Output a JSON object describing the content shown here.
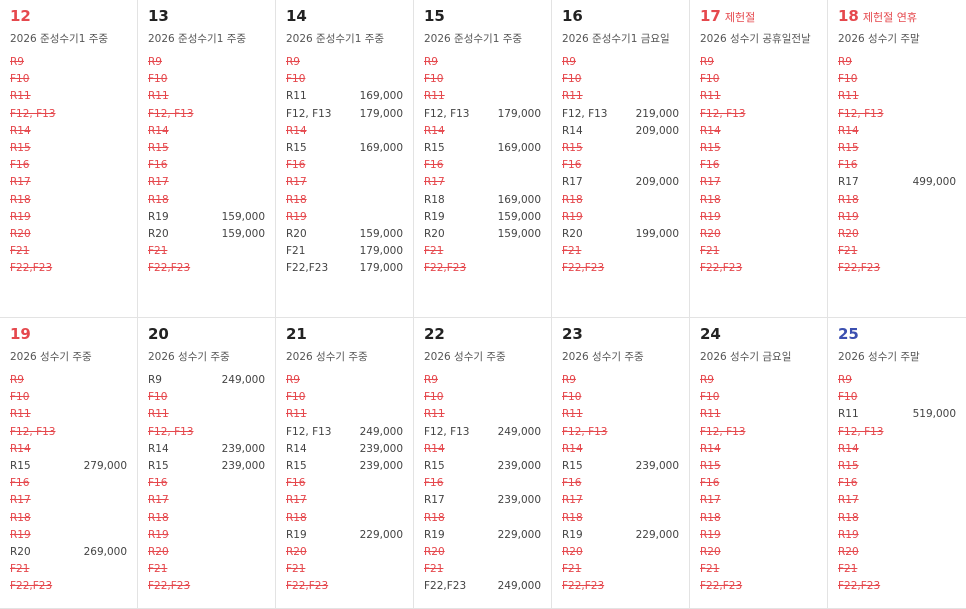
{
  "cells": [
    {
      "day": "12",
      "color": "#e5484d",
      "label": "2026 준성수기1 주중",
      "rooms": [
        {
          "name": "R9"
        },
        {
          "name": "F10"
        },
        {
          "name": "R11"
        },
        {
          "name": "F12, F13"
        },
        {
          "name": "R14"
        },
        {
          "name": "R15"
        },
        {
          "name": "F16"
        },
        {
          "name": "R17"
        },
        {
          "name": "R18"
        },
        {
          "name": "R19"
        },
        {
          "name": "R20"
        },
        {
          "name": "F21"
        },
        {
          "name": "F22,F23"
        }
      ]
    },
    {
      "day": "13",
      "label": "2026 준성수기1 주중",
      "rooms": [
        {
          "name": "R9"
        },
        {
          "name": "F10"
        },
        {
          "name": "R11"
        },
        {
          "name": "F12, F13"
        },
        {
          "name": "R14"
        },
        {
          "name": "R15"
        },
        {
          "name": "F16"
        },
        {
          "name": "R17"
        },
        {
          "name": "R18"
        },
        {
          "name": "R19",
          "price": "159,000"
        },
        {
          "name": "R20",
          "price": "159,000"
        },
        {
          "name": "F21"
        },
        {
          "name": "F22,F23"
        }
      ]
    },
    {
      "day": "14",
      "label": "2026 준성수기1 주중",
      "rooms": [
        {
          "name": "R9"
        },
        {
          "name": "F10"
        },
        {
          "name": "R11",
          "price": "169,000"
        },
        {
          "name": "F12, F13",
          "price": "179,000"
        },
        {
          "name": "R14"
        },
        {
          "name": "R15",
          "price": "169,000"
        },
        {
          "name": "F16"
        },
        {
          "name": "R17"
        },
        {
          "name": "R18"
        },
        {
          "name": "R19"
        },
        {
          "name": "R20",
          "price": "159,000"
        },
        {
          "name": "F21",
          "price": "179,000"
        },
        {
          "name": "F22,F23",
          "price": "179,000"
        }
      ]
    },
    {
      "day": "15",
      "label": "2026 준성수기1 주중",
      "rooms": [
        {
          "name": "R9"
        },
        {
          "name": "F10"
        },
        {
          "name": "R11"
        },
        {
          "name": "F12, F13",
          "price": "179,000"
        },
        {
          "name": "R14"
        },
        {
          "name": "R15",
          "price": "169,000"
        },
        {
          "name": "F16"
        },
        {
          "name": "R17"
        },
        {
          "name": "R18",
          "price": "169,000"
        },
        {
          "name": "R19",
          "price": "159,000"
        },
        {
          "name": "R20",
          "price": "159,000"
        },
        {
          "name": "F21"
        },
        {
          "name": "F22,F23"
        }
      ]
    },
    {
      "day": "16",
      "label": "2026 준성수기1 금요일",
      "rooms": [
        {
          "name": "R9"
        },
        {
          "name": "F10"
        },
        {
          "name": "R11"
        },
        {
          "name": "F12, F13",
          "price": "219,000"
        },
        {
          "name": "R14",
          "price": "209,000"
        },
        {
          "name": "R15"
        },
        {
          "name": "F16"
        },
        {
          "name": "R17",
          "price": "209,000"
        },
        {
          "name": "R18"
        },
        {
          "name": "R19"
        },
        {
          "name": "R20",
          "price": "199,000"
        },
        {
          "name": "F21"
        },
        {
          "name": "F22,F23"
        }
      ]
    },
    {
      "day": "17",
      "color": "#e5484d",
      "holiday": "제헌절",
      "label": "2026 성수기 공휴일전날",
      "rooms": [
        {
          "name": "R9"
        },
        {
          "name": "F10"
        },
        {
          "name": "R11"
        },
        {
          "name": "F12, F13"
        },
        {
          "name": "R14"
        },
        {
          "name": "R15"
        },
        {
          "name": "F16"
        },
        {
          "name": "R17"
        },
        {
          "name": "R18"
        },
        {
          "name": "R19"
        },
        {
          "name": "R20"
        },
        {
          "name": "F21"
        },
        {
          "name": "F22,F23"
        }
      ]
    },
    {
      "day": "18",
      "color": "#e5484d",
      "holiday": "제헌절 연휴",
      "label": "2026 성수기 주말",
      "rooms": [
        {
          "name": "R9"
        },
        {
          "name": "F10"
        },
        {
          "name": "R11"
        },
        {
          "name": "F12, F13"
        },
        {
          "name": "R14"
        },
        {
          "name": "R15"
        },
        {
          "name": "F16"
        },
        {
          "name": "R17",
          "price": "499,000"
        },
        {
          "name": "R18"
        },
        {
          "name": "R19"
        },
        {
          "name": "R20"
        },
        {
          "name": "F21"
        },
        {
          "name": "F22,F23"
        }
      ]
    },
    {
      "day": "19",
      "color": "#e5484d",
      "label": "2026 성수기 주중",
      "rooms": [
        {
          "name": "R9"
        },
        {
          "name": "F10"
        },
        {
          "name": "R11"
        },
        {
          "name": "F12, F13"
        },
        {
          "name": "R14"
        },
        {
          "name": "R15",
          "price": "279,000"
        },
        {
          "name": "F16"
        },
        {
          "name": "R17"
        },
        {
          "name": "R18"
        },
        {
          "name": "R19"
        },
        {
          "name": "R20",
          "price": "269,000"
        },
        {
          "name": "F21"
        },
        {
          "name": "F22,F23"
        }
      ]
    },
    {
      "day": "20",
      "label": "2026 성수기 주중",
      "rooms": [
        {
          "name": "R9",
          "price": "249,000"
        },
        {
          "name": "F10"
        },
        {
          "name": "R11"
        },
        {
          "name": "F12, F13"
        },
        {
          "name": "R14",
          "price": "239,000"
        },
        {
          "name": "R15",
          "price": "239,000"
        },
        {
          "name": "F16"
        },
        {
          "name": "R17"
        },
        {
          "name": "R18"
        },
        {
          "name": "R19"
        },
        {
          "name": "R20"
        },
        {
          "name": "F21"
        },
        {
          "name": "F22,F23"
        }
      ]
    },
    {
      "day": "21",
      "label": "2026 성수기 주중",
      "rooms": [
        {
          "name": "R9"
        },
        {
          "name": "F10"
        },
        {
          "name": "R11"
        },
        {
          "name": "F12, F13",
          "price": "249,000"
        },
        {
          "name": "R14",
          "price": "239,000"
        },
        {
          "name": "R15",
          "price": "239,000"
        },
        {
          "name": "F16"
        },
        {
          "name": "R17"
        },
        {
          "name": "R18"
        },
        {
          "name": "R19",
          "price": "229,000"
        },
        {
          "name": "R20"
        },
        {
          "name": "F21"
        },
        {
          "name": "F22,F23"
        }
      ]
    },
    {
      "day": "22",
      "label": "2026 성수기 주중",
      "rooms": [
        {
          "name": "R9"
        },
        {
          "name": "F10"
        },
        {
          "name": "R11"
        },
        {
          "name": "F12, F13",
          "price": "249,000"
        },
        {
          "name": "R14"
        },
        {
          "name": "R15",
          "price": "239,000"
        },
        {
          "name": "F16"
        },
        {
          "name": "R17",
          "price": "239,000"
        },
        {
          "name": "R18"
        },
        {
          "name": "R19",
          "price": "229,000"
        },
        {
          "name": "R20"
        },
        {
          "name": "F21"
        },
        {
          "name": "F22,F23",
          "price": "249,000"
        }
      ]
    },
    {
      "day": "23",
      "label": "2026 성수기 주중",
      "rooms": [
        {
          "name": "R9"
        },
        {
          "name": "F10"
        },
        {
          "name": "R11"
        },
        {
          "name": "F12, F13"
        },
        {
          "name": "R14"
        },
        {
          "name": "R15",
          "price": "239,000"
        },
        {
          "name": "F16"
        },
        {
          "name": "R17"
        },
        {
          "name": "R18"
        },
        {
          "name": "R19",
          "price": "229,000"
        },
        {
          "name": "R20"
        },
        {
          "name": "F21"
        },
        {
          "name": "F22,F23"
        }
      ]
    },
    {
      "day": "24",
      "label": "2026 성수기 금요일",
      "rooms": [
        {
          "name": "R9"
        },
        {
          "name": "F10"
        },
        {
          "name": "R11"
        },
        {
          "name": "F12, F13"
        },
        {
          "name": "R14"
        },
        {
          "name": "R15"
        },
        {
          "name": "F16"
        },
        {
          "name": "R17"
        },
        {
          "name": "R18"
        },
        {
          "name": "R19"
        },
        {
          "name": "R20"
        },
        {
          "name": "F21"
        },
        {
          "name": "F22,F23"
        }
      ]
    },
    {
      "day": "25",
      "color": "#3b4fb0",
      "label": "2026 성수기 주말",
      "rooms": [
        {
          "name": "R9"
        },
        {
          "name": "F10"
        },
        {
          "name": "R11",
          "price": "519,000"
        },
        {
          "name": "F12, F13"
        },
        {
          "name": "R14"
        },
        {
          "name": "R15"
        },
        {
          "name": "F16"
        },
        {
          "name": "R17"
        },
        {
          "name": "R18"
        },
        {
          "name": "R19"
        },
        {
          "name": "R20"
        },
        {
          "name": "F21"
        },
        {
          "name": "F22,F23"
        }
      ]
    }
  ]
}
